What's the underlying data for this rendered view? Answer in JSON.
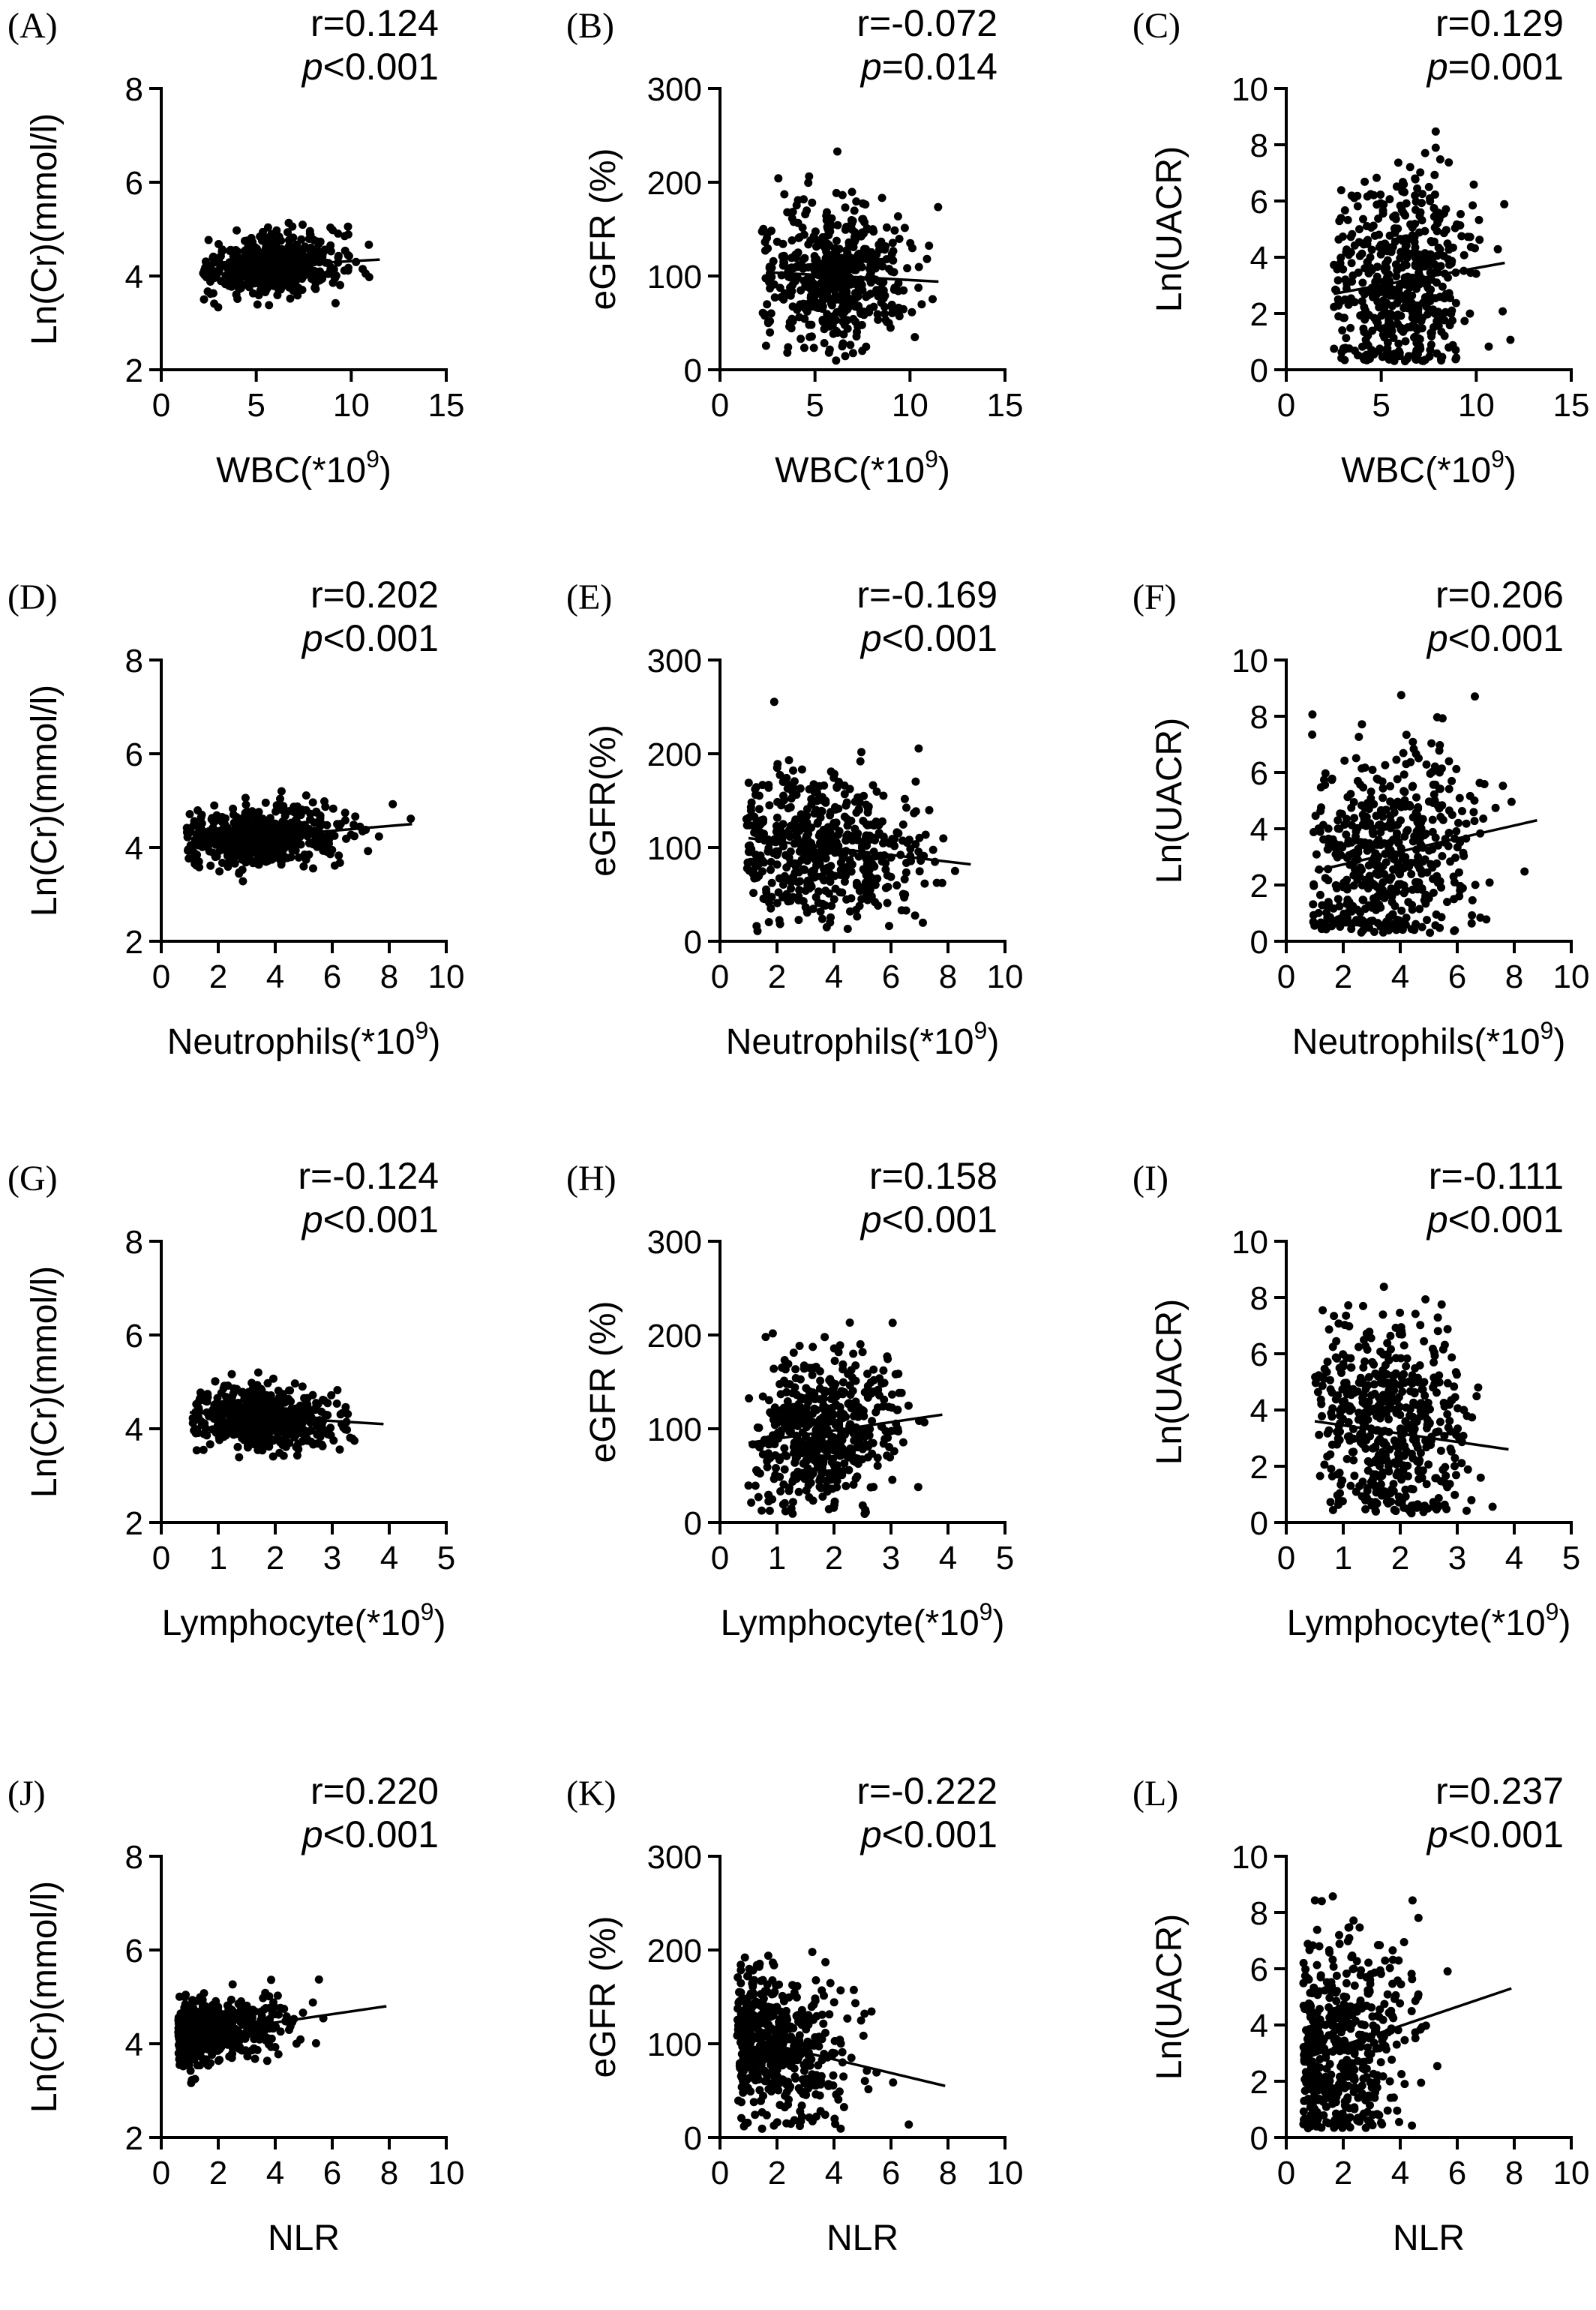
{
  "chart_data": [
    {
      "id": "A",
      "type": "scatter",
      "panel_label": "(A)",
      "r_text": "r=0.124",
      "p_text": "<0.001",
      "xlabel": "WBC(*10",
      "xlabel_sup": "9)",
      "ylabel": "Ln(Cr)(mmol/l)",
      "xlim": [
        0,
        15
      ],
      "ylim": [
        2,
        8
      ],
      "xticks": [
        0,
        5,
        10,
        15
      ],
      "yticks": [
        2,
        4,
        6,
        8
      ],
      "x_range": [
        2.2,
        11.8
      ],
      "y_mean": 4.25,
      "y_sd": 0.32,
      "x_center": 6,
      "fit": [
        [
          2.5,
          4.15
        ],
        [
          11.5,
          4.35
        ]
      ],
      "grid": false
    },
    {
      "id": "B",
      "type": "scatter",
      "panel_label": "(B)",
      "r_text": "r=-0.072",
      "p_text": "=0.014",
      "xlabel": "WBC(*10",
      "xlabel_sup": "9)",
      "ylabel": "eGFR (%)",
      "xlim": [
        0,
        15
      ],
      "ylim": [
        0,
        300
      ],
      "xticks": [
        0,
        5,
        10,
        15
      ],
      "yticks": [
        0,
        100,
        200,
        300
      ],
      "x_range": [
        2.2,
        11.8
      ],
      "y_mean": 100,
      "y_sd": 38,
      "x_center": 6,
      "fit": [
        [
          2.5,
          104
        ],
        [
          11.5,
          94
        ]
      ],
      "grid": false
    },
    {
      "id": "C",
      "type": "scatter",
      "panel_label": "(C)",
      "r_text": "r=0.129",
      "p_text": "=0.001",
      "xlabel": "WBC(*10",
      "xlabel_sup": "9)",
      "ylabel": "Ln(UACR)",
      "xlim": [
        0,
        15
      ],
      "ylim": [
        0,
        10
      ],
      "xticks": [
        0,
        5,
        10,
        15
      ],
      "yticks": [
        0,
        2,
        4,
        6,
        8,
        10
      ],
      "x_range": [
        2.5,
        11.8
      ],
      "y_mean": 3.1,
      "y_sd": 1.9,
      "x_center": 6,
      "fit": [
        [
          2.5,
          2.7
        ],
        [
          11.5,
          3.8
        ]
      ],
      "grid": false
    },
    {
      "id": "D",
      "type": "scatter",
      "panel_label": "(D)",
      "r_text": "r=0.202",
      "p_text": "<0.001",
      "xlabel": "Neutrophils(*10",
      "xlabel_sup": "9)",
      "ylabel": "Ln(Cr)(mmol/l)",
      "xlim": [
        0,
        10
      ],
      "ylim": [
        2,
        8
      ],
      "xticks": [
        0,
        2,
        4,
        6,
        8,
        10
      ],
      "yticks": [
        2,
        4,
        6,
        8
      ],
      "x_range": [
        0.9,
        8.9
      ],
      "y_mean": 4.25,
      "y_sd": 0.32,
      "x_center": 3.6,
      "fit": [
        [
          1,
          4.1
        ],
        [
          8.8,
          4.5
        ]
      ],
      "grid": false
    },
    {
      "id": "E",
      "type": "scatter",
      "panel_label": "(E)",
      "r_text": "r=-0.169",
      "p_text": "<0.001",
      "xlabel": "Neutrophils(*10",
      "xlabel_sup": "9)",
      "ylabel": "eGFR(%)",
      "xlim": [
        0,
        10
      ],
      "ylim": [
        0,
        300
      ],
      "xticks": [
        0,
        2,
        4,
        6,
        8,
        10
      ],
      "yticks": [
        0,
        100,
        200,
        300
      ],
      "x_range": [
        0.9,
        8.9
      ],
      "y_mean": 100,
      "y_sd": 38,
      "x_center": 3.6,
      "fit": [
        [
          1,
          110
        ],
        [
          8.8,
          82
        ]
      ],
      "grid": false
    },
    {
      "id": "F",
      "type": "scatter",
      "panel_label": "(F)",
      "r_text": "r=0.206",
      "p_text": "<0.001",
      "xlabel": "Neutrophils(*10",
      "xlabel_sup": "9)",
      "ylabel": "Ln(UACR)",
      "xlim": [
        0,
        10
      ],
      "ylim": [
        0,
        10
      ],
      "xticks": [
        0,
        2,
        4,
        6,
        8,
        10
      ],
      "yticks": [
        0,
        2,
        4,
        6,
        8,
        10
      ],
      "x_range": [
        0.9,
        8.9
      ],
      "y_mean": 3.1,
      "y_sd": 1.9,
      "x_center": 3.6,
      "fit": [
        [
          1,
          2.5
        ],
        [
          8.8,
          4.3
        ]
      ],
      "grid": false
    },
    {
      "id": "G",
      "type": "scatter",
      "panel_label": "(G)",
      "r_text": "r=-0.124",
      "p_text": "<0.001",
      "xlabel": "Lymphocyte(*10",
      "xlabel_sup": "9)",
      "ylabel": "Ln(Cr)(mmol/l)",
      "xlim": [
        0,
        5
      ],
      "ylim": [
        2,
        8
      ],
      "xticks": [
        0,
        1,
        2,
        3,
        4,
        5
      ],
      "yticks": [
        2,
        4,
        6,
        8
      ],
      "x_range": [
        0.5,
        3.9
      ],
      "y_mean": 4.25,
      "y_sd": 0.32,
      "x_center": 1.8,
      "fit": [
        [
          0.5,
          4.35
        ],
        [
          3.9,
          4.1
        ]
      ],
      "grid": false
    },
    {
      "id": "H",
      "type": "scatter",
      "panel_label": "(H)",
      "r_text": "r=0.158",
      "p_text": "<0.001",
      "xlabel": "Lymphocyte(*10",
      "xlabel_sup": "9)",
      "ylabel": "eGFR (%)",
      "xlim": [
        0,
        5
      ],
      "ylim": [
        0,
        300
      ],
      "xticks": [
        0,
        1,
        2,
        3,
        4,
        5
      ],
      "yticks": [
        0,
        100,
        200,
        300
      ],
      "x_range": [
        0.5,
        3.9
      ],
      "y_mean": 100,
      "y_sd": 38,
      "x_center": 1.8,
      "fit": [
        [
          0.5,
          85
        ],
        [
          3.9,
          115
        ]
      ],
      "grid": false
    },
    {
      "id": "I",
      "type": "scatter",
      "panel_label": "(I)",
      "r_text": "r=-0.111",
      "p_text": "<0.001",
      "xlabel": "Lymphocyte(*10",
      "xlabel_sup": "9)",
      "ylabel": "Ln(UACR)",
      "xlim": [
        0,
        5
      ],
      "ylim": [
        0,
        10
      ],
      "xticks": [
        0,
        1,
        2,
        3,
        4,
        5
      ],
      "yticks": [
        0,
        2,
        4,
        6,
        8,
        10
      ],
      "x_range": [
        0.5,
        3.9
      ],
      "y_mean": 3.1,
      "y_sd": 1.9,
      "x_center": 1.8,
      "fit": [
        [
          0.5,
          3.6
        ],
        [
          3.9,
          2.6
        ]
      ],
      "grid": false
    },
    {
      "id": "J",
      "type": "scatter",
      "panel_label": "(J)",
      "r_text": "r=0.220",
      "p_text": "<0.001",
      "xlabel": "NLR",
      "xlabel_sup": "",
      "ylabel": "Ln(Cr)(mmol/l)",
      "xlim": [
        0,
        10
      ],
      "ylim": [
        2,
        8
      ],
      "xticks": [
        0,
        2,
        4,
        6,
        8,
        10
      ],
      "yticks": [
        2,
        4,
        6,
        8
      ],
      "x_range": [
        0.6,
        7.9
      ],
      "y_mean": 4.25,
      "y_sd": 0.32,
      "x_center": 1.8,
      "fit": [
        [
          0.6,
          4.15
        ],
        [
          7.9,
          4.8
        ]
      ],
      "grid": false
    },
    {
      "id": "K",
      "type": "scatter",
      "panel_label": "(K)",
      "r_text": "r=-0.222",
      "p_text": "<0.001",
      "xlabel": "NLR",
      "xlabel_sup": "",
      "ylabel": "eGFR (%)",
      "xlim": [
        0,
        10
      ],
      "ylim": [
        0,
        300
      ],
      "xticks": [
        0,
        2,
        4,
        6,
        8,
        10
      ],
      "yticks": [
        0,
        100,
        200,
        300
      ],
      "x_range": [
        0.6,
        7.9
      ],
      "y_mean": 100,
      "y_sd": 38,
      "x_center": 1.8,
      "fit": [
        [
          0.6,
          108
        ],
        [
          7.9,
          55
        ]
      ],
      "grid": false
    },
    {
      "id": "L",
      "type": "scatter",
      "panel_label": "(L)",
      "r_text": "r=0.237",
      "p_text": "<0.001",
      "xlabel": "NLR",
      "xlabel_sup": "",
      "ylabel": "Ln(UACR)",
      "xlim": [
        0,
        10
      ],
      "ylim": [
        0,
        10
      ],
      "xticks": [
        0,
        2,
        4,
        6,
        8,
        10
      ],
      "yticks": [
        0,
        2,
        4,
        6,
        8,
        10
      ],
      "x_range": [
        0.6,
        7.9
      ],
      "y_mean": 3.1,
      "y_sd": 1.9,
      "x_center": 1.8,
      "fit": [
        [
          0.6,
          2.8
        ],
        [
          7.9,
          5.3
        ]
      ],
      "grid": false
    }
  ],
  "p_symbol": "p"
}
